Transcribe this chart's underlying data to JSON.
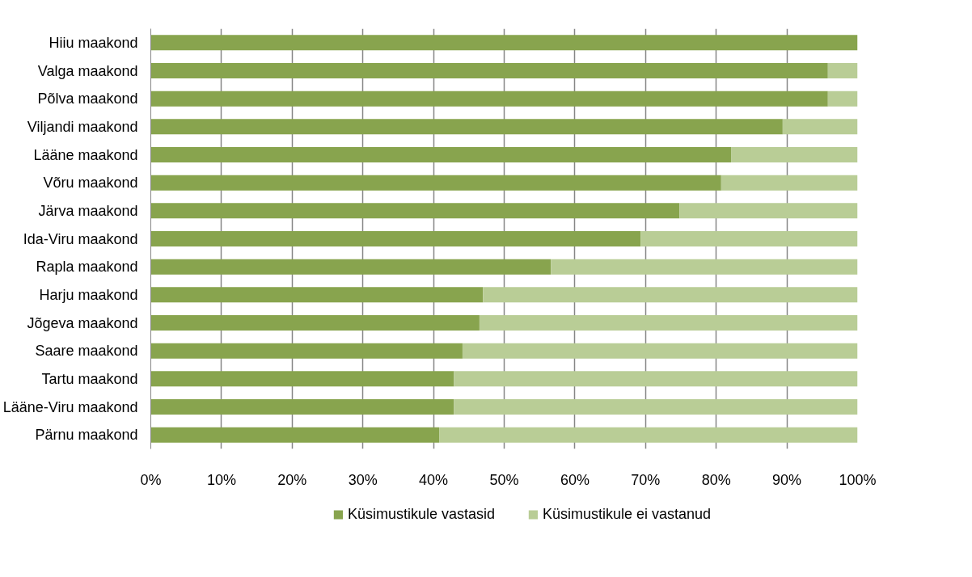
{
  "chart_data": {
    "type": "bar",
    "orientation": "horizontal",
    "stacked": true,
    "categories": [
      "Hiiu maakond",
      "Valga maakond",
      "Põlva maakond",
      "Viljandi maakond",
      "Lääne maakond",
      "Võru maakond",
      "Järva maakond",
      "Ida-Viru maakond",
      "Rapla maakond",
      "Harju maakond",
      "Jõgeva maakond",
      "Saare maakond",
      "Tartu maakond",
      "Lääne-Viru maakond",
      "Pärnu maakond"
    ],
    "series": [
      {
        "name": "Küsimustikule vastasid",
        "color": "#88a44e",
        "values": [
          100,
          95.8,
          95.8,
          89.4,
          82.1,
          80.7,
          74.8,
          69.3,
          56.6,
          47.0,
          46.5,
          44.1,
          42.9,
          42.9,
          40.8
        ]
      },
      {
        "name": "Küsimustikule ei vastanud",
        "color": "#b9cd96",
        "values": [
          0,
          4.2,
          4.2,
          10.6,
          17.9,
          19.3,
          25.2,
          30.7,
          43.4,
          53.0,
          53.5,
          55.9,
          57.1,
          57.1,
          59.2
        ]
      }
    ],
    "xlim": [
      0,
      100
    ],
    "xticks": [
      {
        "value": 0,
        "label": "0%"
      },
      {
        "value": 10,
        "label": "10%"
      },
      {
        "value": 20,
        "label": "20%"
      },
      {
        "value": 30,
        "label": "30%"
      },
      {
        "value": 40,
        "label": "40%"
      },
      {
        "value": 50,
        "label": "50%"
      },
      {
        "value": 60,
        "label": "60%"
      },
      {
        "value": 70,
        "label": "70%"
      },
      {
        "value": 80,
        "label": "80%"
      },
      {
        "value": 90,
        "label": "90%"
      },
      {
        "value": 100,
        "label": "100%"
      }
    ],
    "grid": "x",
    "legend": "bottom"
  }
}
